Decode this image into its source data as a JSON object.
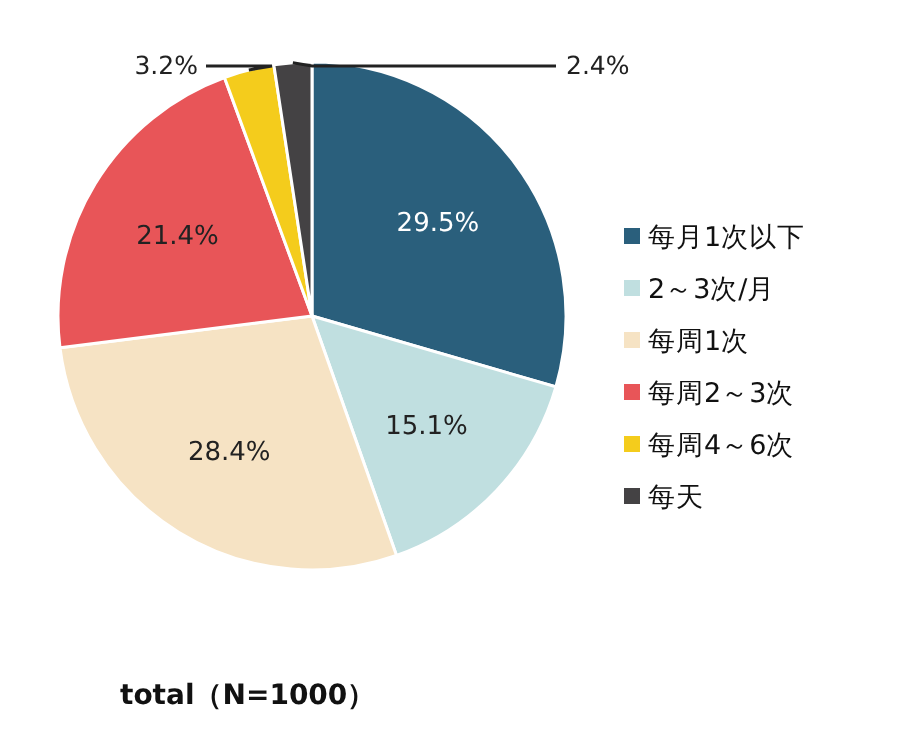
{
  "chart_data": {
    "type": "pie",
    "title": "total（N=1000）",
    "categories": [
      "每月1次以下",
      "2～3次/月",
      "每周1次",
      "每周2～3次",
      "每周4～6次",
      "每天"
    ],
    "values": [
      29.5,
      15.1,
      28.4,
      21.4,
      3.2,
      2.4
    ],
    "colors": [
      "#2a5f7c",
      "#c0dfe0",
      "#f6e3c4",
      "#e85558",
      "#f4cc1c",
      "#444244"
    ],
    "value_labels": [
      "29.5%",
      "15.1%",
      "28.4%",
      "21.4%",
      "3.2%",
      "2.4%"
    ],
    "legend": "right"
  }
}
